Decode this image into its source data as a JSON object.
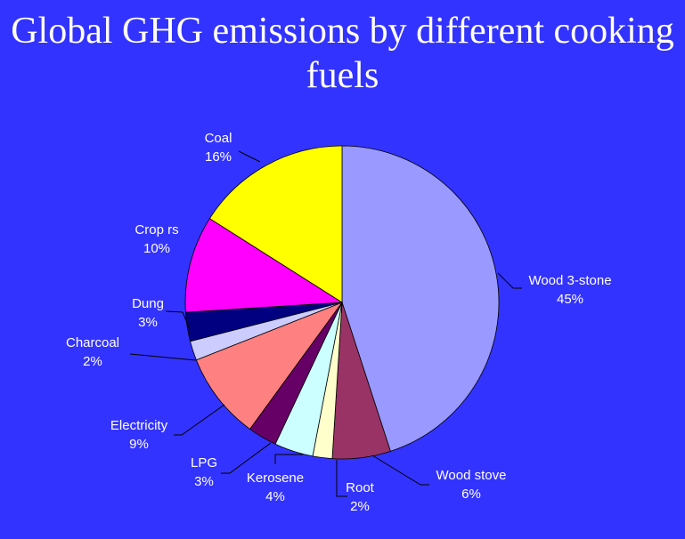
{
  "chart_data": {
    "type": "pie",
    "title": "Global GHG emissions by different cooking fuels",
    "start": "top",
    "direction": "clockwise",
    "background_color": "#3333FF",
    "slices": [
      {
        "label": "Wood 3-stone",
        "value": 45,
        "value_label": "45%",
        "color": "#9999FF"
      },
      {
        "label": "Wood stove",
        "value": 6,
        "value_label": "6%",
        "color": "#993366"
      },
      {
        "label": "Root",
        "value": 2,
        "value_label": "2%",
        "color": "#FFFFCC"
      },
      {
        "label": "Kerosene",
        "value": 4,
        "value_label": "4%",
        "color": "#CCFFFF"
      },
      {
        "label": "LPG",
        "value": 3,
        "value_label": "3%",
        "color": "#660066"
      },
      {
        "label": "Electricity",
        "value": 9,
        "value_label": "9%",
        "color": "#FF8080"
      },
      {
        "label": "Charcoal",
        "value": 2,
        "value_label": "2%",
        "color": "#CCCCFF"
      },
      {
        "label": "Dung",
        "value": 3,
        "value_label": "3%",
        "color": "#000080"
      },
      {
        "label": "Crop rs",
        "value": 10,
        "value_label": "10%",
        "color": "#FF00FF"
      },
      {
        "label": "Coal",
        "value": 16,
        "value_label": "16%",
        "color": "#FFFF00"
      }
    ]
  }
}
